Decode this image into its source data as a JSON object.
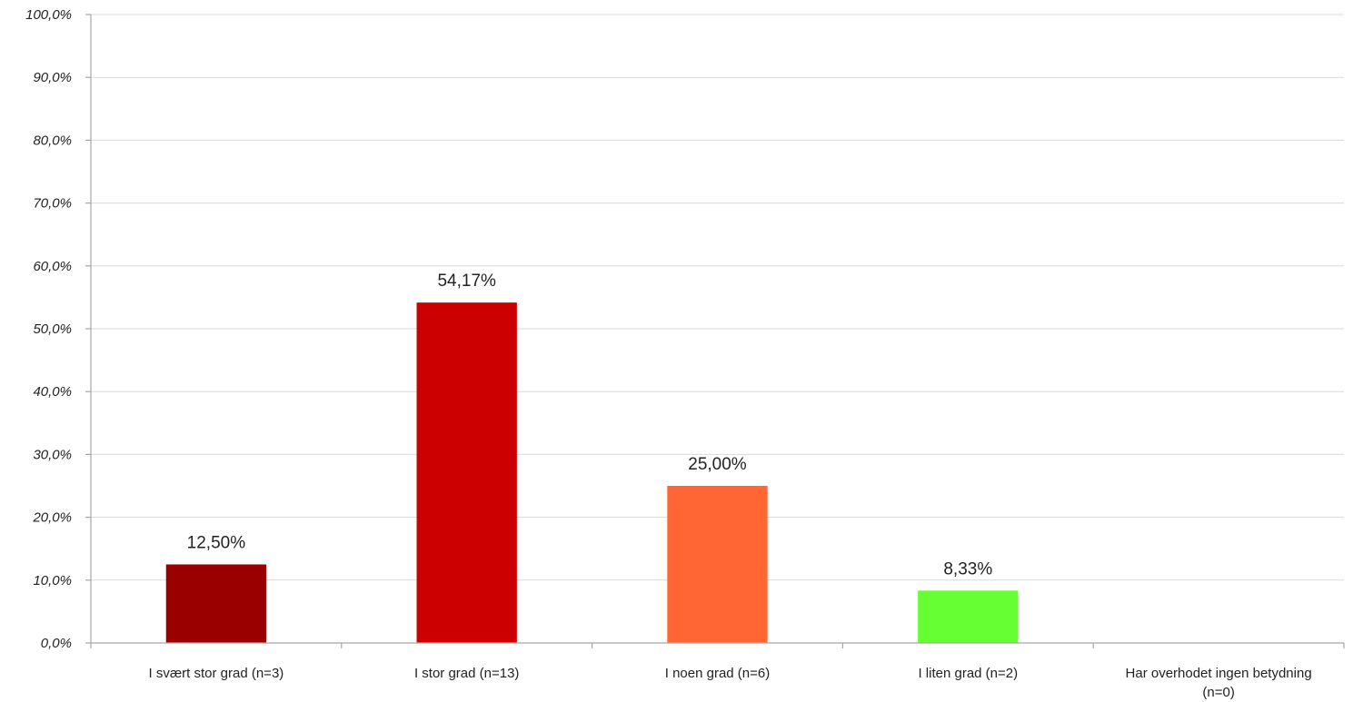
{
  "chart_data": {
    "type": "bar",
    "title": "",
    "xlabel": "",
    "ylabel": "",
    "ylim": [
      0,
      100
    ],
    "yticks": [
      "0,0%",
      "10,0%",
      "20,0%",
      "30,0%",
      "40,0%",
      "50,0%",
      "60,0%",
      "70,0%",
      "80,0%",
      "90,0%",
      "100,0%"
    ],
    "grid": true,
    "legend": "none",
    "categories": [
      [
        "I svært stor grad (n=3)"
      ],
      [
        "I stor grad (n=13)"
      ],
      [
        "I noen grad (n=6)"
      ],
      [
        "I liten grad (n=2)"
      ],
      [
        "Har overhodet ingen betydning",
        "(n=0)"
      ]
    ],
    "values": [
      12.5,
      54.17,
      25.0,
      8.33,
      0
    ],
    "data_labels": [
      "12,50%",
      "54,17%",
      "25,00%",
      "8,33%",
      ""
    ],
    "colors": [
      "#9b0000",
      "#cc0000",
      "#ff6633",
      "#66ff33",
      "#cccccc"
    ]
  }
}
